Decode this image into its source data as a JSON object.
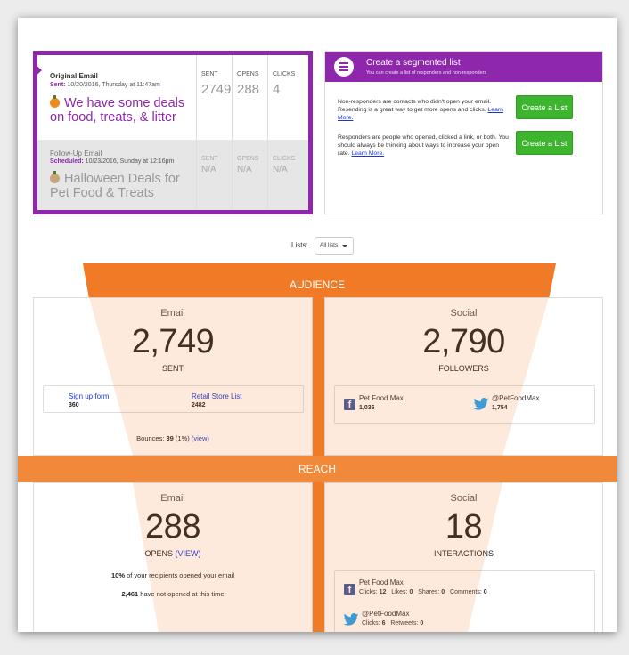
{
  "original_email": {
    "type_label": "Original Email",
    "date_prefix": "Sent:",
    "date_value": " 10/20/2016, Thursday at 11:47am",
    "subject": "We have some deals on food, treats, & litter",
    "stats": [
      {
        "label": "SENT",
        "value": "2749"
      },
      {
        "label": "OPENS",
        "value": "288"
      },
      {
        "label": "CLICKS",
        "value": "4"
      }
    ]
  },
  "followup_email": {
    "type_label": "Follow-Up Email",
    "date_prefix": "Scheduled:",
    "date_value": " 10/23/2016, Sunday at 12:16pm",
    "subject": "Halloween Deals for Pet Food & Treats",
    "stats": [
      {
        "label": "SENT",
        "value": "N/A"
      },
      {
        "label": "OPENS",
        "value": "N/A"
      },
      {
        "label": "CLICKS",
        "value": "N/A"
      }
    ]
  },
  "segmented": {
    "title": "Create a segmented list",
    "subtitle": "You can create a list of responders and non-responders",
    "items": [
      {
        "text": "Non-responders are contacts who didn't open your email. Resending is a great way to get more opens and clicks. ",
        "link": "Learn More.",
        "button": "Create a List"
      },
      {
        "text": "Responders are people who opened, clicked a link, or both. You should always be thinking about ways to increase your open rate. ",
        "link": "Learn More.",
        "button": "Create a List"
      }
    ]
  },
  "lists": {
    "label": "Lists:",
    "selected": "All lists"
  },
  "audience": {
    "band_label": "AUDIENCE",
    "email": {
      "title": "Email",
      "big": "2,749",
      "sub": "SENT",
      "sources": [
        {
          "name": "Sign up form",
          "count": "360"
        },
        {
          "name": "Retail Store List",
          "count": "2482"
        }
      ],
      "bounces_label": "Bounces: ",
      "bounces_value": "39",
      "bounces_pct": " (1%) ",
      "bounces_view": "(view)"
    },
    "social": {
      "title": "Social",
      "big": "2,790",
      "sub": "FOLLOWERS",
      "accounts": [
        {
          "name": "Pet Food Max",
          "count": "1,036",
          "icon": "facebook-icon"
        },
        {
          "name": "@PetFoodMax",
          "count": "1,754",
          "icon": "twitter-icon"
        }
      ]
    }
  },
  "reach": {
    "band_label": "REACH",
    "email": {
      "title": "Email",
      "big": "288",
      "sub": "OPENS",
      "sub_view": "(VIEW)",
      "line1_bold": "10%",
      "line1_rest": " of your recipients opened your email",
      "line2_bold": "2,461",
      "line2_rest": " have not opened at this time"
    },
    "social": {
      "title": "Social",
      "big": "18",
      "sub": "INTERACTIONS",
      "facebook": {
        "name": "Pet Food Max",
        "clicks_label": "Clicks: ",
        "clicks": "12",
        "likes_label": "Likes: ",
        "likes": "0",
        "shares_label": "Shares: ",
        "shares": "0",
        "comments_label": "Comments: ",
        "comments": "0"
      },
      "twitter": {
        "name": "@PetFoodMax",
        "clicks_label": "Clicks: ",
        "clicks": "6",
        "retweets_label": "Retweets: ",
        "retweets": "0"
      }
    }
  },
  "colors": {
    "purple": "#8f27ad",
    "orange": "#f07a26",
    "orange_light": "#fbe2cf",
    "green": "#3db52e",
    "link": "#1a35d6"
  }
}
